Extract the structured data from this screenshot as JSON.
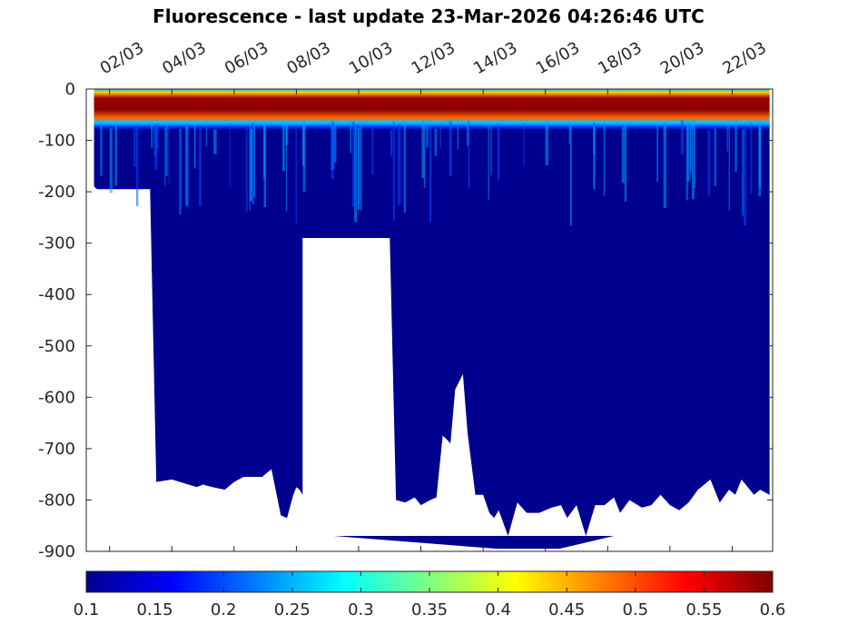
{
  "chart_data": {
    "type": "heatmap",
    "title": "Fluorescence - last update 23-Mar-2026 04:26:46 UTC",
    "xlabel": "",
    "ylabel": "",
    "x_ticks": [
      "02/03",
      "04/03",
      "06/03",
      "08/03",
      "10/03",
      "12/03",
      "14/03",
      "16/03",
      "18/03",
      "20/03",
      "22/03"
    ],
    "x_tick_days": [
      2,
      4,
      6,
      8,
      10,
      12,
      14,
      16,
      18,
      20,
      22
    ],
    "xlim_days": [
      1.25,
      23.3
    ],
    "y_ticks": [
      0,
      -100,
      -200,
      -300,
      -400,
      -500,
      -600,
      -700,
      -800,
      -900
    ],
    "ylim": [
      -900,
      0
    ],
    "colorbar": {
      "min": 0.1,
      "max": 0.6,
      "ticks": [
        "0.1",
        "0.15",
        "0.2",
        "0.25",
        "0.3",
        "0.35",
        "0.4",
        "0.45",
        "0.5",
        "0.55",
        "0.6"
      ],
      "colormap": "jet"
    },
    "surface_layer": {
      "high_fluorescence_depth_range": [
        -80,
        0
      ],
      "peak_value": 0.6,
      "background_value": 0.1
    },
    "profile_max_depth": {
      "days": [
        1.5,
        1.6,
        3.2,
        3.3,
        3.5,
        4.0,
        4.8,
        5.0,
        5.3,
        5.7,
        6.0,
        6.3,
        6.9,
        7.2,
        7.5,
        7.7,
        7.9,
        8.0,
        8.1,
        8.2,
        10.7,
        11.0,
        11.2,
        11.5,
        11.8,
        12.0,
        12.3,
        12.5,
        12.7,
        12.8,
        12.95,
        13.1,
        13.35,
        13.5,
        13.75,
        14.0,
        14.2,
        14.35,
        14.5,
        14.8,
        15.1,
        15.4,
        15.8,
        16.2,
        16.5,
        16.7,
        17.0,
        17.3,
        17.6,
        17.9,
        18.2,
        18.4,
        18.7,
        19.1,
        19.4,
        19.7,
        20.0,
        20.3,
        20.6,
        20.9,
        21.3,
        21.6,
        21.9,
        22.1,
        22.3,
        22.7,
        22.9,
        23.2
      ],
      "depths": [
        -190,
        -195,
        -195,
        -195,
        -765,
        -760,
        -775,
        -770,
        -775,
        -780,
        -765,
        -755,
        -755,
        -740,
        -830,
        -835,
        -790,
        -775,
        -780,
        -790,
        -290,
        -290,
        -800,
        -805,
        -795,
        -810,
        -800,
        -795,
        -675,
        -680,
        -690,
        -585,
        -555,
        -670,
        -790,
        -790,
        -825,
        -835,
        -820,
        -870,
        -805,
        -825,
        -825,
        -815,
        -810,
        -835,
        -810,
        -870,
        -810,
        -810,
        -795,
        -825,
        -800,
        -815,
        -810,
        -790,
        -810,
        -820,
        -805,
        -780,
        -760,
        -805,
        -780,
        -790,
        -760,
        -790,
        -780,
        -790
      ]
    },
    "data_gap": {
      "days": [
        8.2,
        10.7
      ],
      "top_depth": -290
    },
    "deep_profile_fill": {
      "days": [
        9.2,
        18.2
      ],
      "depth_range": [
        -895,
        -870
      ]
    }
  }
}
